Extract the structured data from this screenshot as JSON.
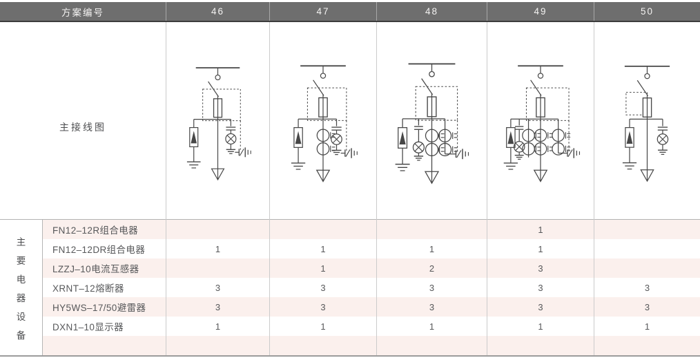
{
  "table": {
    "header": {
      "scheme_label": "方案编号",
      "scheme_numbers": [
        "46",
        "47",
        "48",
        "49",
        "50"
      ]
    },
    "diagram_row": {
      "label": "主接线图",
      "diagrams": [
        {
          "scheme": "46",
          "current_transformer_groups": 0,
          "indicator_lamp_side": "right",
          "live_display_connection": true
        },
        {
          "scheme": "47",
          "current_transformer_groups": 1,
          "indicator_lamp_side": "right",
          "live_display_connection": true
        },
        {
          "scheme": "48",
          "current_transformer_groups": 2,
          "indicator_lamp_side": "left",
          "live_display_connection": true
        },
        {
          "scheme": "49",
          "current_transformer_groups": 3,
          "indicator_lamp_side": "left",
          "live_display_connection": true
        },
        {
          "scheme": "50",
          "current_transformer_groups": 0,
          "indicator_lamp_side": "right",
          "live_display_connection": false
        }
      ]
    },
    "equipment": {
      "group_label": "主要电器设备",
      "rows": [
        {
          "name": "FN12–12R组合电器",
          "quantities": [
            "",
            "",
            "",
            "1",
            ""
          ]
        },
        {
          "name": "FN12–12DR组合电器",
          "quantities": [
            "1",
            "1",
            "1",
            "1",
            ""
          ]
        },
        {
          "name": "LZZJ–10电流互感器",
          "quantities": [
            "",
            "1",
            "2",
            "3",
            ""
          ]
        },
        {
          "name": "XRNT–12熔断器",
          "quantities": [
            "3",
            "3",
            "3",
            "3",
            "3"
          ]
        },
        {
          "name": "HY5WS–17/50避雷器",
          "quantities": [
            "3",
            "3",
            "3",
            "3",
            "3"
          ]
        },
        {
          "name": "DXN1–10显示器",
          "quantities": [
            "1",
            "1",
            "1",
            "1",
            "1"
          ]
        },
        {
          "name": "",
          "quantities": [
            "",
            "",
            "",
            "",
            ""
          ]
        }
      ]
    }
  },
  "colors": {
    "header_bg": "#6e6e6e",
    "header_text": "#f4f3f2",
    "header_underline": "#3c3c3c",
    "row_pink": "#fbf0ed",
    "row_white": "#ffffff",
    "grid_line": "#cbcbcb",
    "bottom_border": "#9b9b9b",
    "body_text": "#57585a",
    "diagram_stroke": "#474747"
  }
}
